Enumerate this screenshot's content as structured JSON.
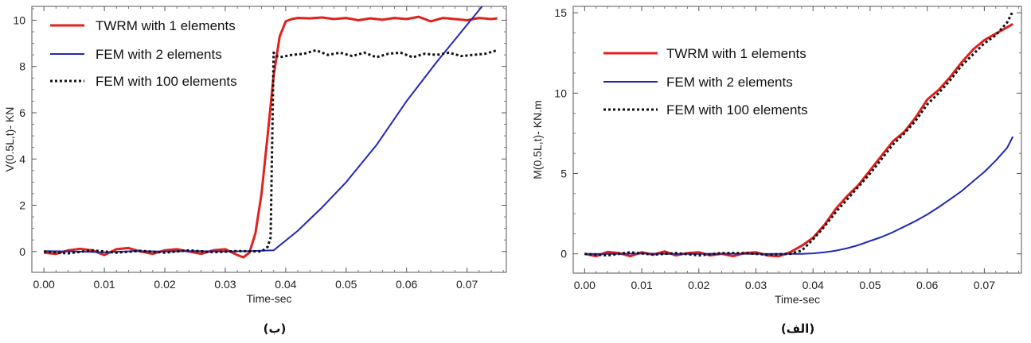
{
  "chart_data": [
    {
      "type": "line",
      "caption": "(ب)",
      "xlabel": "Time-sec",
      "ylabel": "V(0.5L,t)- KN",
      "xlim": [
        -0.002,
        0.0765
      ],
      "ylim": [
        -0.9,
        10.6
      ],
      "xticks": [
        "0.00",
        "0.01",
        "0.02",
        "0.03",
        "0.04",
        "0.05",
        "0.06",
        "0.07"
      ],
      "yticks": [
        "0",
        "2",
        "4",
        "6",
        "8",
        "10"
      ],
      "legend_position": "top-left",
      "series": [
        {
          "name": "TWRM with 1 elements",
          "color": "#e0211d",
          "style": "solid",
          "x": [
            0,
            0.002,
            0.004,
            0.006,
            0.008,
            0.01,
            0.012,
            0.014,
            0.016,
            0.018,
            0.02,
            0.022,
            0.024,
            0.026,
            0.028,
            0.03,
            0.032,
            0.033,
            0.034,
            0.035,
            0.036,
            0.037,
            0.038,
            0.039,
            0.04,
            0.041,
            0.042,
            0.044,
            0.046,
            0.048,
            0.05,
            0.052,
            0.054,
            0.056,
            0.058,
            0.06,
            0.062,
            0.064,
            0.066,
            0.068,
            0.07,
            0.072,
            0.074,
            0.075
          ],
          "y": [
            -0.05,
            -0.1,
            0.05,
            0.12,
            0.05,
            -0.15,
            0.1,
            0.15,
            0,
            -0.1,
            0.05,
            0.1,
            0,
            -0.1,
            0.05,
            0.1,
            -0.15,
            -0.25,
            -0.05,
            0.8,
            2.5,
            5,
            7.6,
            9.3,
            9.95,
            10.05,
            10.1,
            10.08,
            10.12,
            10.05,
            10.1,
            10.0,
            10.08,
            10.02,
            10.1,
            10.05,
            10.15,
            9.95,
            10.1,
            10.05,
            10.0,
            10.1,
            10.05,
            10.08
          ]
        },
        {
          "name": "FEM with 2 elements",
          "color": "#2228b8",
          "style": "solid",
          "x": [
            0,
            0.005,
            0.01,
            0.015,
            0.02,
            0.025,
            0.03,
            0.034,
            0.038,
            0.042,
            0.046,
            0.05,
            0.055,
            0.06,
            0.065,
            0.07,
            0.0725
          ],
          "y": [
            0.02,
            0,
            -0.03,
            0.02,
            0,
            0.02,
            0,
            0.02,
            0.05,
            0.9,
            1.9,
            3.0,
            4.6,
            6.5,
            8.2,
            9.8,
            10.6
          ]
        },
        {
          "name": "FEM with 100 elements",
          "color": "#111111",
          "style": "dotted",
          "x": [
            0,
            0.004,
            0.008,
            0.012,
            0.016,
            0.02,
            0.024,
            0.028,
            0.032,
            0.036,
            0.037,
            0.0375,
            0.038,
            0.0385,
            0.039,
            0.041,
            0.043,
            0.045,
            0.047,
            0.049,
            0.051,
            0.053,
            0.055,
            0.057,
            0.059,
            0.061,
            0.063,
            0.065,
            0.067,
            0.069,
            0.071,
            0.073,
            0.075
          ],
          "y": [
            0,
            -0.08,
            0.05,
            -0.05,
            0.03,
            -0.05,
            0.05,
            -0.03,
            0.02,
            0,
            0.2,
            0.6,
            8.6,
            8.45,
            8.4,
            8.5,
            8.55,
            8.7,
            8.5,
            8.6,
            8.45,
            8.6,
            8.4,
            8.55,
            8.6,
            8.4,
            8.55,
            8.5,
            8.6,
            8.45,
            8.5,
            8.55,
            8.7
          ]
        }
      ]
    },
    {
      "type": "line",
      "caption": "(الف)",
      "xlabel": "Time-sec",
      "ylabel": "M(0.5L,t)- KN.m",
      "xlim": [
        -0.002,
        0.0765
      ],
      "ylim": [
        -1.2,
        15.4
      ],
      "xticks": [
        "0.00",
        "0.01",
        "0.02",
        "0.03",
        "0.04",
        "0.05",
        "0.06",
        "0.07"
      ],
      "yticks": [
        "0",
        "5",
        "10",
        "15"
      ],
      "legend_position": "top-left",
      "series": [
        {
          "name": "TWRM with 1 elements",
          "color": "#e0211d",
          "style": "solid",
          "x": [
            0,
            0.002,
            0.004,
            0.006,
            0.008,
            0.01,
            0.012,
            0.014,
            0.016,
            0.018,
            0.02,
            0.022,
            0.024,
            0.026,
            0.028,
            0.03,
            0.032,
            0.034,
            0.036,
            0.038,
            0.04,
            0.042,
            0.044,
            0.046,
            0.048,
            0.05,
            0.052,
            0.054,
            0.056,
            0.058,
            0.06,
            0.062,
            0.064,
            0.066,
            0.068,
            0.07,
            0.072,
            0.074,
            0.075
          ],
          "y": [
            0,
            -0.15,
            0.12,
            0.05,
            -0.15,
            0.1,
            -0.05,
            0.15,
            -0.1,
            0.05,
            0.1,
            -0.1,
            0,
            -0.15,
            0.05,
            0.1,
            -0.1,
            -0.15,
            0.1,
            0.5,
            1.0,
            1.8,
            2.8,
            3.6,
            4.3,
            5.2,
            6.1,
            7.0,
            7.6,
            8.5,
            9.6,
            10.2,
            11.0,
            11.9,
            12.7,
            13.3,
            13.7,
            14.1,
            14.3
          ]
        },
        {
          "name": "FEM with 2 elements",
          "color": "#2228b8",
          "style": "solid",
          "x": [
            0,
            0.005,
            0.01,
            0.015,
            0.02,
            0.025,
            0.03,
            0.035,
            0.038,
            0.04,
            0.042,
            0.044,
            0.046,
            0.048,
            0.05,
            0.052,
            0.054,
            0.056,
            0.058,
            0.06,
            0.062,
            0.064,
            0.066,
            0.068,
            0.07,
            0.072,
            0.074,
            0.075
          ],
          "y": [
            0,
            0,
            0.02,
            0,
            0,
            0.01,
            0,
            0,
            0,
            0.03,
            0.1,
            0.2,
            0.35,
            0.55,
            0.8,
            1.05,
            1.35,
            1.7,
            2.05,
            2.45,
            2.9,
            3.4,
            3.9,
            4.5,
            5.1,
            5.8,
            6.6,
            7.3
          ]
        },
        {
          "name": "FEM with 100 elements",
          "color": "#111111",
          "style": "dotted",
          "x": [
            0,
            0.004,
            0.008,
            0.012,
            0.016,
            0.02,
            0.024,
            0.028,
            0.032,
            0.036,
            0.038,
            0.04,
            0.042,
            0.044,
            0.046,
            0.048,
            0.05,
            0.052,
            0.054,
            0.056,
            0.058,
            0.06,
            0.062,
            0.064,
            0.066,
            0.068,
            0.07,
            0.072,
            0.074,
            0.075
          ],
          "y": [
            0,
            -0.1,
            0.1,
            -0.05,
            0.05,
            -0.1,
            0.05,
            0.05,
            -0.05,
            0,
            0.2,
            0.9,
            1.7,
            2.6,
            3.4,
            4.2,
            5.0,
            5.9,
            6.8,
            7.5,
            8.3,
            9.3,
            10.0,
            10.8,
            11.7,
            12.4,
            13.1,
            13.6,
            14.4,
            15.1
          ]
        }
      ]
    }
  ]
}
